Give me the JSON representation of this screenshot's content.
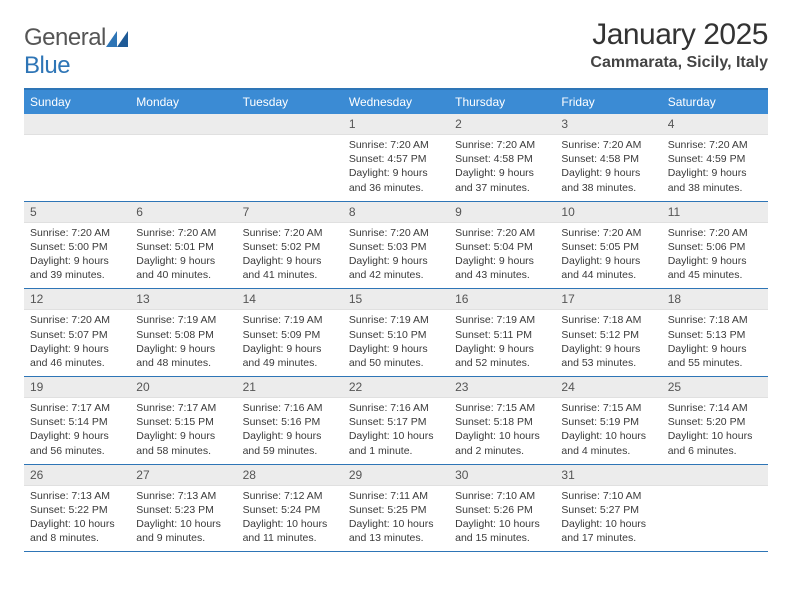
{
  "logo": {
    "text1": "General",
    "text2": "Blue"
  },
  "title": "January 2025",
  "location": "Cammarata, Sicily, Italy",
  "colors": {
    "header_bg": "#3b8bd4",
    "border": "#2e75b6",
    "daynum_bg": "#ececec"
  },
  "weekdays": [
    "Sunday",
    "Monday",
    "Tuesday",
    "Wednesday",
    "Thursday",
    "Friday",
    "Saturday"
  ],
  "weeks": [
    [
      {
        "n": "",
        "sunrise": "",
        "sunset": "",
        "daylight": ""
      },
      {
        "n": "",
        "sunrise": "",
        "sunset": "",
        "daylight": ""
      },
      {
        "n": "",
        "sunrise": "",
        "sunset": "",
        "daylight": ""
      },
      {
        "n": "1",
        "sunrise": "Sunrise: 7:20 AM",
        "sunset": "Sunset: 4:57 PM",
        "daylight": "Daylight: 9 hours and 36 minutes."
      },
      {
        "n": "2",
        "sunrise": "Sunrise: 7:20 AM",
        "sunset": "Sunset: 4:58 PM",
        "daylight": "Daylight: 9 hours and 37 minutes."
      },
      {
        "n": "3",
        "sunrise": "Sunrise: 7:20 AM",
        "sunset": "Sunset: 4:58 PM",
        "daylight": "Daylight: 9 hours and 38 minutes."
      },
      {
        "n": "4",
        "sunrise": "Sunrise: 7:20 AM",
        "sunset": "Sunset: 4:59 PM",
        "daylight": "Daylight: 9 hours and 38 minutes."
      }
    ],
    [
      {
        "n": "5",
        "sunrise": "Sunrise: 7:20 AM",
        "sunset": "Sunset: 5:00 PM",
        "daylight": "Daylight: 9 hours and 39 minutes."
      },
      {
        "n": "6",
        "sunrise": "Sunrise: 7:20 AM",
        "sunset": "Sunset: 5:01 PM",
        "daylight": "Daylight: 9 hours and 40 minutes."
      },
      {
        "n": "7",
        "sunrise": "Sunrise: 7:20 AM",
        "sunset": "Sunset: 5:02 PM",
        "daylight": "Daylight: 9 hours and 41 minutes."
      },
      {
        "n": "8",
        "sunrise": "Sunrise: 7:20 AM",
        "sunset": "Sunset: 5:03 PM",
        "daylight": "Daylight: 9 hours and 42 minutes."
      },
      {
        "n": "9",
        "sunrise": "Sunrise: 7:20 AM",
        "sunset": "Sunset: 5:04 PM",
        "daylight": "Daylight: 9 hours and 43 minutes."
      },
      {
        "n": "10",
        "sunrise": "Sunrise: 7:20 AM",
        "sunset": "Sunset: 5:05 PM",
        "daylight": "Daylight: 9 hours and 44 minutes."
      },
      {
        "n": "11",
        "sunrise": "Sunrise: 7:20 AM",
        "sunset": "Sunset: 5:06 PM",
        "daylight": "Daylight: 9 hours and 45 minutes."
      }
    ],
    [
      {
        "n": "12",
        "sunrise": "Sunrise: 7:20 AM",
        "sunset": "Sunset: 5:07 PM",
        "daylight": "Daylight: 9 hours and 46 minutes."
      },
      {
        "n": "13",
        "sunrise": "Sunrise: 7:19 AM",
        "sunset": "Sunset: 5:08 PM",
        "daylight": "Daylight: 9 hours and 48 minutes."
      },
      {
        "n": "14",
        "sunrise": "Sunrise: 7:19 AM",
        "sunset": "Sunset: 5:09 PM",
        "daylight": "Daylight: 9 hours and 49 minutes."
      },
      {
        "n": "15",
        "sunrise": "Sunrise: 7:19 AM",
        "sunset": "Sunset: 5:10 PM",
        "daylight": "Daylight: 9 hours and 50 minutes."
      },
      {
        "n": "16",
        "sunrise": "Sunrise: 7:19 AM",
        "sunset": "Sunset: 5:11 PM",
        "daylight": "Daylight: 9 hours and 52 minutes."
      },
      {
        "n": "17",
        "sunrise": "Sunrise: 7:18 AM",
        "sunset": "Sunset: 5:12 PM",
        "daylight": "Daylight: 9 hours and 53 minutes."
      },
      {
        "n": "18",
        "sunrise": "Sunrise: 7:18 AM",
        "sunset": "Sunset: 5:13 PM",
        "daylight": "Daylight: 9 hours and 55 minutes."
      }
    ],
    [
      {
        "n": "19",
        "sunrise": "Sunrise: 7:17 AM",
        "sunset": "Sunset: 5:14 PM",
        "daylight": "Daylight: 9 hours and 56 minutes."
      },
      {
        "n": "20",
        "sunrise": "Sunrise: 7:17 AM",
        "sunset": "Sunset: 5:15 PM",
        "daylight": "Daylight: 9 hours and 58 minutes."
      },
      {
        "n": "21",
        "sunrise": "Sunrise: 7:16 AM",
        "sunset": "Sunset: 5:16 PM",
        "daylight": "Daylight: 9 hours and 59 minutes."
      },
      {
        "n": "22",
        "sunrise": "Sunrise: 7:16 AM",
        "sunset": "Sunset: 5:17 PM",
        "daylight": "Daylight: 10 hours and 1 minute."
      },
      {
        "n": "23",
        "sunrise": "Sunrise: 7:15 AM",
        "sunset": "Sunset: 5:18 PM",
        "daylight": "Daylight: 10 hours and 2 minutes."
      },
      {
        "n": "24",
        "sunrise": "Sunrise: 7:15 AM",
        "sunset": "Sunset: 5:19 PM",
        "daylight": "Daylight: 10 hours and 4 minutes."
      },
      {
        "n": "25",
        "sunrise": "Sunrise: 7:14 AM",
        "sunset": "Sunset: 5:20 PM",
        "daylight": "Daylight: 10 hours and 6 minutes."
      }
    ],
    [
      {
        "n": "26",
        "sunrise": "Sunrise: 7:13 AM",
        "sunset": "Sunset: 5:22 PM",
        "daylight": "Daylight: 10 hours and 8 minutes."
      },
      {
        "n": "27",
        "sunrise": "Sunrise: 7:13 AM",
        "sunset": "Sunset: 5:23 PM",
        "daylight": "Daylight: 10 hours and 9 minutes."
      },
      {
        "n": "28",
        "sunrise": "Sunrise: 7:12 AM",
        "sunset": "Sunset: 5:24 PM",
        "daylight": "Daylight: 10 hours and 11 minutes."
      },
      {
        "n": "29",
        "sunrise": "Sunrise: 7:11 AM",
        "sunset": "Sunset: 5:25 PM",
        "daylight": "Daylight: 10 hours and 13 minutes."
      },
      {
        "n": "30",
        "sunrise": "Sunrise: 7:10 AM",
        "sunset": "Sunset: 5:26 PM",
        "daylight": "Daylight: 10 hours and 15 minutes."
      },
      {
        "n": "31",
        "sunrise": "Sunrise: 7:10 AM",
        "sunset": "Sunset: 5:27 PM",
        "daylight": "Daylight: 10 hours and 17 minutes."
      },
      {
        "n": "",
        "sunrise": "",
        "sunset": "",
        "daylight": ""
      }
    ]
  ]
}
